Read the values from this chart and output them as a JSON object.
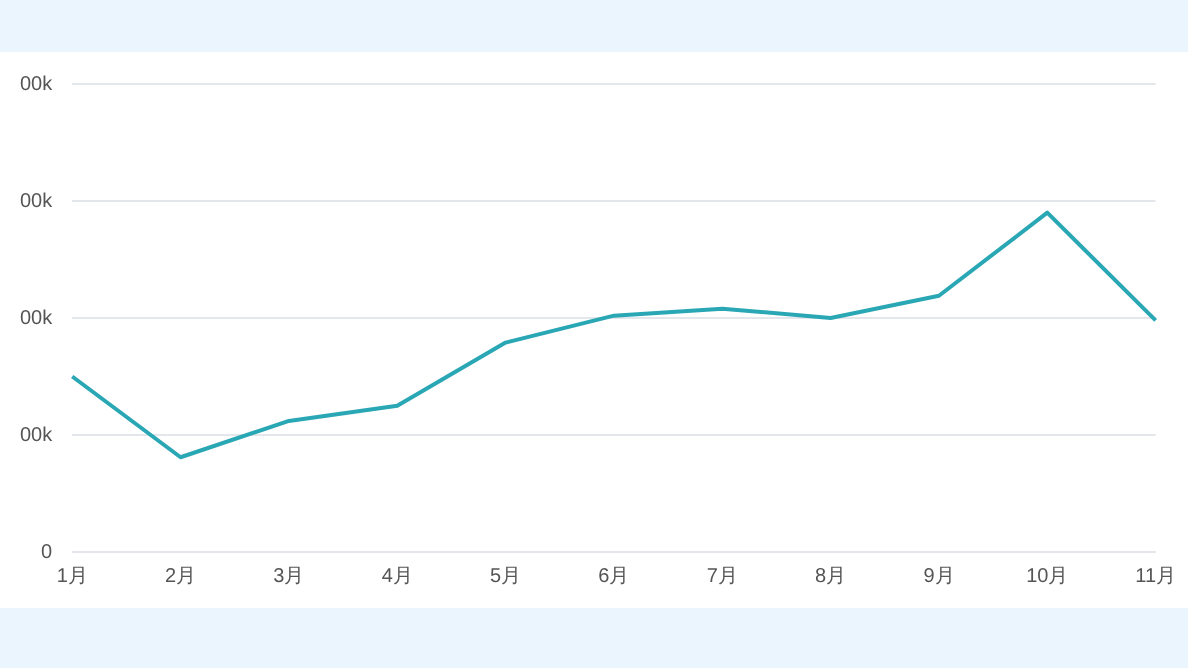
{
  "chart_data": {
    "type": "line",
    "categories": [
      "1月",
      "2月",
      "3月",
      "4月",
      "5月",
      "6月",
      "7月",
      "8月",
      "9月",
      "10月",
      "11月"
    ],
    "series": [
      {
        "color": "#2aa7b4",
        "values": [
          150,
          81,
          112,
          125,
          179,
          202,
          208,
          200,
          219,
          290,
          198
        ]
      }
    ],
    "ylim": [
      0,
      400
    ],
    "yticks": [
      0,
      {
        "value": 100,
        "label": "00k"
      },
      {
        "value": 200,
        "label": "00k"
      },
      {
        "value": 300,
        "label": "00k"
      },
      {
        "value": 400,
        "label": "00k"
      }
    ],
    "grid": "y",
    "legend": false,
    "marker": "none",
    "line_style": "solid"
  }
}
